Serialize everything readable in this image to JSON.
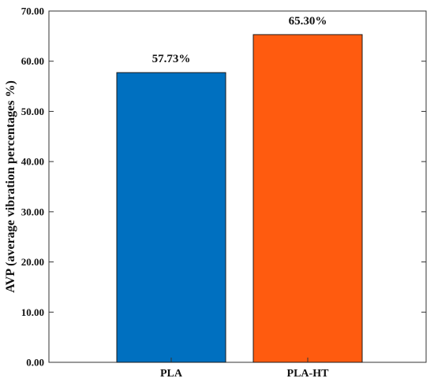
{
  "chart_data": {
    "type": "bar",
    "categories": [
      "PLA",
      "PLA-HT"
    ],
    "values": [
      57.73,
      65.3
    ],
    "data_labels": [
      "57.73%",
      "65.30%"
    ],
    "bar_colors": [
      "#0070C0",
      "#FF5B0F"
    ],
    "ylabel": "AVP (average vibration percentages %)",
    "xlabel": "",
    "ylim": [
      0,
      70
    ],
    "yticks": [
      "0.00",
      "10.00",
      "20.00",
      "30.00",
      "40.00",
      "50.00",
      "60.00",
      "70.00"
    ],
    "grid": false
  }
}
